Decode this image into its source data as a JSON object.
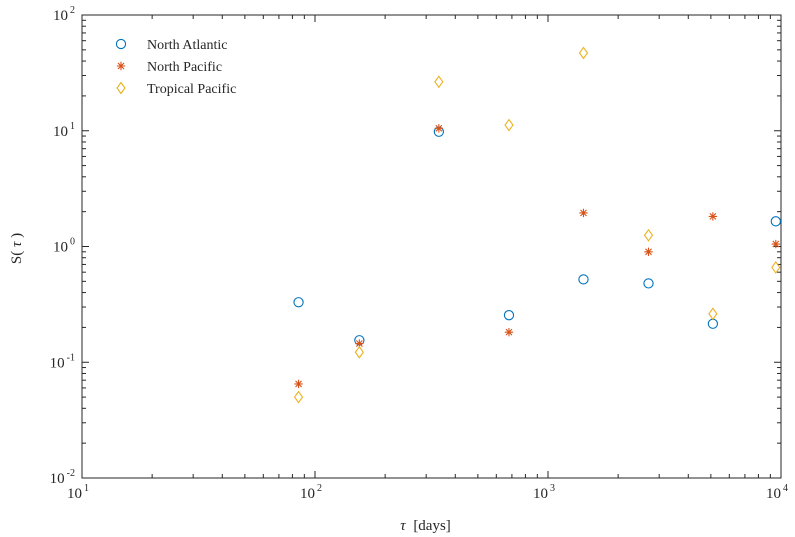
{
  "chart_data": {
    "type": "scatter",
    "x_scale": "log",
    "y_scale": "log",
    "xlim": [
      10,
      10000
    ],
    "ylim": [
      0.01,
      100
    ],
    "xlabel_symbol": "τ",
    "xlabel_unit": "[days]",
    "ylabel_prefix": "S(",
    "ylabel_symbol": "τ",
    "ylabel_suffix": ")",
    "x_ticks": [
      {
        "value": 10,
        "base": "10",
        "exp": "1"
      },
      {
        "value": 100,
        "base": "10",
        "exp": "2"
      },
      {
        "value": 1000,
        "base": "10",
        "exp": "3"
      },
      {
        "value": 10000,
        "base": "10",
        "exp": "4"
      }
    ],
    "y_ticks": [
      {
        "value": 0.01,
        "base": "10",
        "exp": "-2"
      },
      {
        "value": 0.1,
        "base": "10",
        "exp": "-1"
      },
      {
        "value": 1,
        "base": "10",
        "exp": "0"
      },
      {
        "value": 10,
        "base": "10",
        "exp": "1"
      },
      {
        "value": 100,
        "base": "10",
        "exp": "2"
      }
    ],
    "grid": false,
    "legend_position": "top-left",
    "x": [
      85,
      155,
      340,
      680,
      1420,
      2700,
      5100,
      9500
    ],
    "series": [
      {
        "name": "North Atlantic",
        "marker": "circle",
        "color": "#0072BD",
        "values": [
          0.33,
          0.155,
          9.8,
          0.255,
          0.52,
          0.48,
          0.215,
          1.65
        ]
      },
      {
        "name": "North Pacific",
        "marker": "asterisk",
        "color": "#D95319",
        "values": [
          0.065,
          0.145,
          10.5,
          0.182,
          1.95,
          0.9,
          1.82,
          1.05
        ]
      },
      {
        "name": "Tropical Pacific",
        "marker": "diamond",
        "color": "#EDB120",
        "values": [
          0.05,
          0.122,
          26.5,
          11.2,
          47,
          1.25,
          0.262,
          0.66
        ]
      }
    ]
  }
}
